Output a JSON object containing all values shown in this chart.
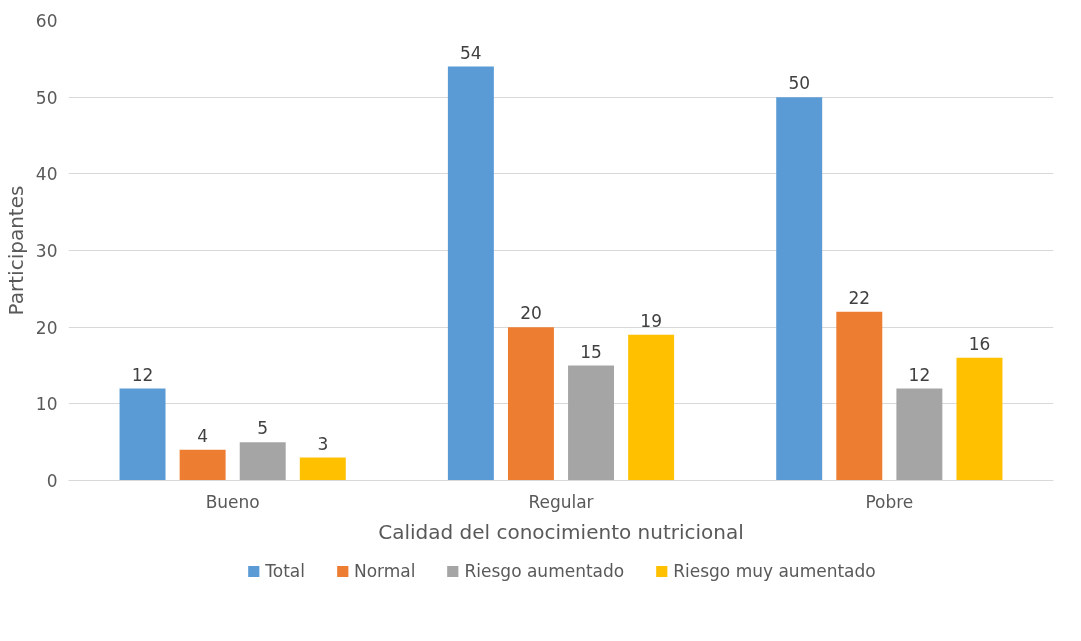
{
  "chart_data": {
    "type": "bar",
    "xlabel": "Calidad del conocimiento nutricional",
    "ylabel": "Participantes",
    "categories": [
      "Bueno",
      "Regular",
      "Pobre"
    ],
    "series": [
      {
        "name": "Total",
        "color": "#5b9bd5",
        "values": [
          12,
          54,
          50
        ]
      },
      {
        "name": "Normal",
        "color": "#ed7d31",
        "values": [
          4,
          20,
          22
        ]
      },
      {
        "name": "Riesgo aumentado",
        "color": "#a5a5a5",
        "values": [
          5,
          15,
          12
        ]
      },
      {
        "name": "Riesgo muy aumentado",
        "color": "#ffc000",
        "values": [
          3,
          19,
          16
        ]
      }
    ],
    "ylim": [
      0,
      60
    ],
    "yticks": [
      0,
      10,
      20,
      30,
      40,
      50,
      60
    ],
    "grid": "y",
    "legend": "bottom",
    "data_labels": true
  }
}
